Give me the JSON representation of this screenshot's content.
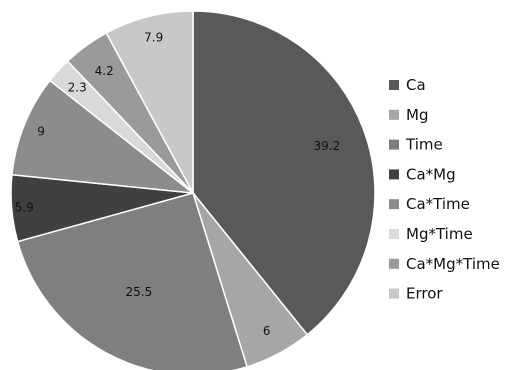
{
  "chart_data": {
    "type": "pie",
    "title": "",
    "legend_position": "right",
    "grid": false,
    "labels": [
      "Ca",
      "Mg",
      "Time",
      "Ca*Mg",
      "Ca*Time",
      "Mg*Time",
      "Ca*Mg*Time",
      "Error"
    ],
    "values": [
      39.2,
      6,
      25.5,
      5.9,
      9,
      2.3,
      4.2,
      7.9
    ],
    "colors": [
      "#595959",
      "#a6a6a6",
      "#7f7f7f",
      "#404040",
      "#8c8c8c",
      "#d9d9d9",
      "#9a9a9a",
      "#c8c8c8"
    ],
    "value_labels": [
      "39.2",
      "6",
      "25.5",
      "5.9",
      "9",
      "2.3",
      "4.2",
      "7.9"
    ],
    "legend": {
      "entries": [
        "Ca",
        "Mg",
        "Time",
        "Ca*Mg",
        "Ca*Time",
        "Mg*Time",
        "Ca*Mg*Time",
        "Error"
      ],
      "colors": [
        "#595959",
        "#a6a6a6",
        "#7f7f7f",
        "#404040",
        "#8c8c8c",
        "#d9d9d9",
        "#9a9a9a",
        "#c8c8c8"
      ]
    }
  }
}
